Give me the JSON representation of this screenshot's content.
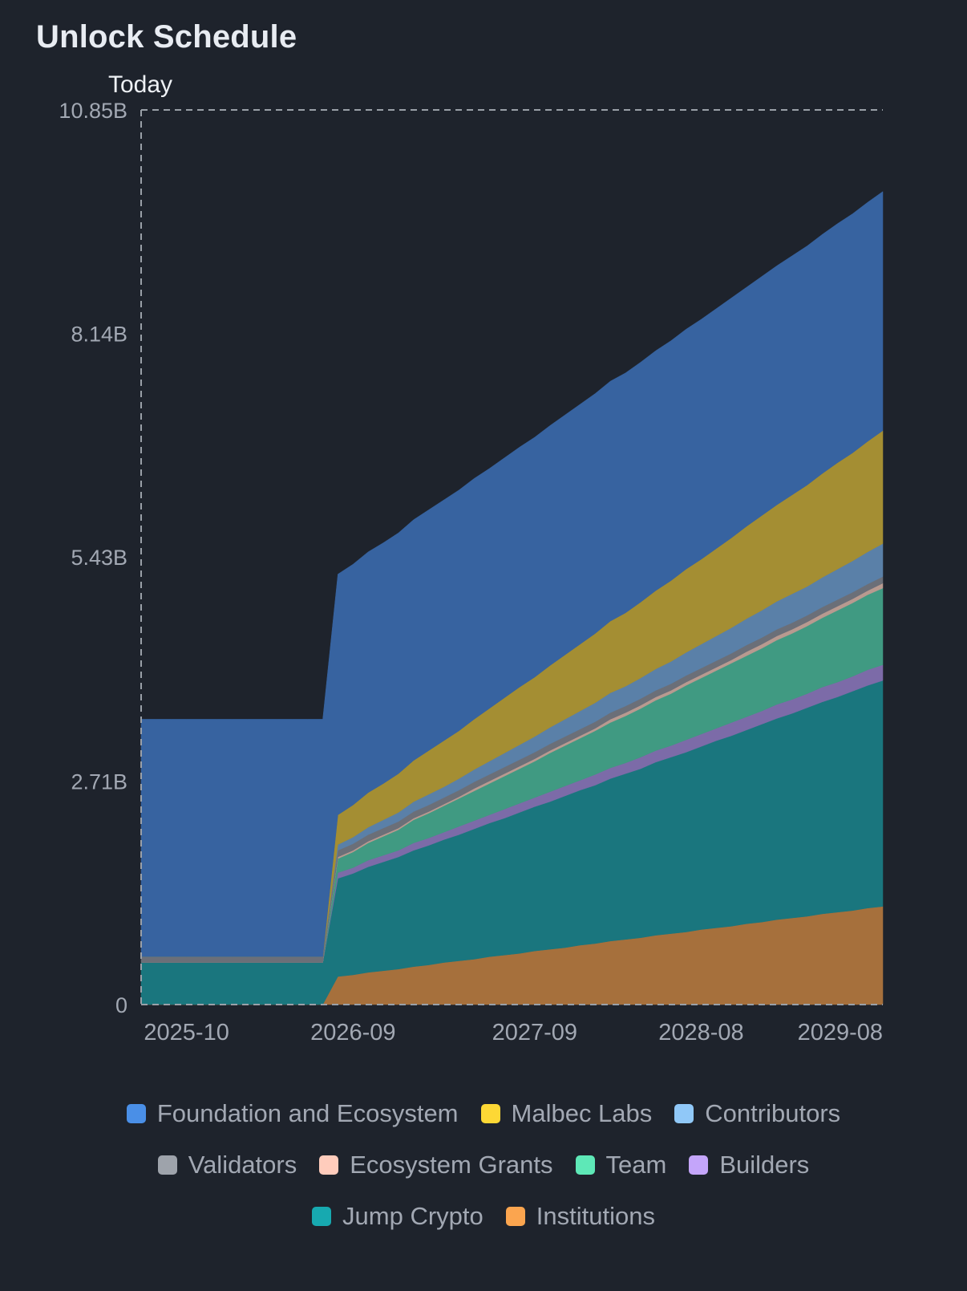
{
  "title": "Unlock Schedule",
  "today_label": "Today",
  "chart_data": {
    "type": "area",
    "stacked": true,
    "title": "Unlock Schedule",
    "xlabel": "",
    "ylabel": "",
    "ylim": [
      0,
      10.85
    ],
    "y_unit": "B",
    "y_ticks": [
      {
        "value": 0,
        "label": "0"
      },
      {
        "value": 2.71,
        "label": "2.71B"
      },
      {
        "value": 5.43,
        "label": "5.43B"
      },
      {
        "value": 8.14,
        "label": "8.14B"
      },
      {
        "value": 10.85,
        "label": "10.85B"
      }
    ],
    "x_ticks": [
      {
        "index": 3,
        "label": "2025-10"
      },
      {
        "index": 14,
        "label": "2026-09"
      },
      {
        "index": 26,
        "label": "2027-09"
      },
      {
        "index": 37,
        "label": "2028-08"
      },
      {
        "index": 49,
        "label": "2029-08"
      }
    ],
    "x_start": "2025-07",
    "x_count": 50,
    "today_index": 0,
    "grid": "top-dashed",
    "legend_position": "bottom",
    "stack_order_bottom_to_top": [
      "Institutions",
      "Jump Crypto",
      "Builders",
      "Team",
      "Ecosystem Grants",
      "Validators",
      "Contributors",
      "Malbec Labs",
      "Foundation and Ecosystem"
    ],
    "series": [
      {
        "name": "Foundation and Ecosystem",
        "legend_color": "#4a8fe7",
        "fill": "#3763a0",
        "values": [
          2.88,
          2.88,
          2.88,
          2.88,
          2.88,
          2.88,
          2.88,
          2.88,
          2.88,
          2.88,
          2.88,
          2.88,
          2.88,
          2.92,
          2.92,
          2.92,
          2.92,
          2.92,
          2.92,
          2.92,
          2.92,
          2.92,
          2.92,
          2.91,
          2.91,
          2.91,
          2.91,
          2.91,
          2.91,
          2.91,
          2.91,
          2.91,
          2.91,
          2.91,
          2.91,
          2.91,
          2.91,
          2.91,
          2.91,
          2.91,
          2.9,
          2.9,
          2.9,
          2.9,
          2.9,
          2.9,
          2.9,
          2.9,
          2.9,
          2.9
        ]
      },
      {
        "name": "Malbec Labs",
        "legend_color": "#fdd835",
        "fill": "#a48e33",
        "values": [
          0,
          0,
          0,
          0,
          0,
          0,
          0,
          0,
          0,
          0,
          0,
          0,
          0,
          0.36,
          0.39,
          0.42,
          0.44,
          0.47,
          0.5,
          0.53,
          0.56,
          0.58,
          0.61,
          0.64,
          0.67,
          0.7,
          0.72,
          0.75,
          0.78,
          0.81,
          0.84,
          0.87,
          0.89,
          0.92,
          0.95,
          0.98,
          1.01,
          1.03,
          1.06,
          1.09,
          1.12,
          1.15,
          1.17,
          1.2,
          1.23,
          1.26,
          1.29,
          1.31,
          1.34,
          1.37
        ]
      },
      {
        "name": "Contributors",
        "legend_color": "#90c8f8",
        "fill": "#5a80a8",
        "values": [
          0,
          0,
          0,
          0,
          0,
          0,
          0,
          0,
          0,
          0,
          0,
          0,
          0,
          0.07,
          0.08,
          0.09,
          0.1,
          0.11,
          0.12,
          0.13,
          0.13,
          0.14,
          0.15,
          0.16,
          0.17,
          0.18,
          0.19,
          0.2,
          0.21,
          0.22,
          0.23,
          0.24,
          0.24,
          0.25,
          0.26,
          0.27,
          0.28,
          0.29,
          0.3,
          0.31,
          0.32,
          0.33,
          0.34,
          0.35,
          0.35,
          0.36,
          0.37,
          0.38,
          0.39,
          0.4
        ]
      },
      {
        "name": "Validators",
        "legend_color": "#9ea3ab",
        "fill": "#6b6f78",
        "values": [
          0.07,
          0.07,
          0.07,
          0.07,
          0.07,
          0.07,
          0.07,
          0.07,
          0.07,
          0.07,
          0.07,
          0.07,
          0.07,
          0.08,
          0.08,
          0.08,
          0.08,
          0.08,
          0.08,
          0.08,
          0.08,
          0.08,
          0.08,
          0.08,
          0.08,
          0.08,
          0.08,
          0.08,
          0.08,
          0.08,
          0.08,
          0.08,
          0.08,
          0.08,
          0.08,
          0.08,
          0.08,
          0.08,
          0.08,
          0.08,
          0.08,
          0.08,
          0.08,
          0.08,
          0.08,
          0.08,
          0.08,
          0.08,
          0.08,
          0.08
        ]
      },
      {
        "name": "Ecosystem Grants",
        "legend_color": "#ffccbc",
        "fill": "#b89a90",
        "values": [
          0,
          0,
          0,
          0,
          0,
          0,
          0,
          0,
          0,
          0,
          0,
          0,
          0,
          0.02,
          0.02,
          0.02,
          0.02,
          0.02,
          0.02,
          0.02,
          0.02,
          0.02,
          0.03,
          0.03,
          0.03,
          0.03,
          0.03,
          0.03,
          0.03,
          0.03,
          0.03,
          0.04,
          0.04,
          0.04,
          0.04,
          0.04,
          0.04,
          0.04,
          0.04,
          0.04,
          0.05,
          0.05,
          0.05,
          0.05,
          0.05,
          0.05,
          0.05,
          0.05,
          0.05,
          0.06
        ]
      },
      {
        "name": "Team",
        "legend_color": "#5ee8b7",
        "fill": "#409a82",
        "values": [
          0,
          0,
          0,
          0,
          0,
          0,
          0,
          0,
          0,
          0,
          0,
          0,
          0,
          0.17,
          0.19,
          0.21,
          0.23,
          0.25,
          0.28,
          0.3,
          0.32,
          0.34,
          0.36,
          0.38,
          0.4,
          0.42,
          0.44,
          0.47,
          0.49,
          0.51,
          0.53,
          0.55,
          0.57,
          0.59,
          0.61,
          0.63,
          0.66,
          0.68,
          0.7,
          0.72,
          0.74,
          0.76,
          0.78,
          0.8,
          0.82,
          0.84,
          0.87,
          0.89,
          0.91,
          0.93
        ]
      },
      {
        "name": "Builders",
        "legend_color": "#c4a5fa",
        "fill": "#7c6ba8",
        "values": [
          0,
          0,
          0,
          0,
          0,
          0,
          0,
          0,
          0,
          0,
          0,
          0,
          0,
          0.07,
          0.07,
          0.08,
          0.08,
          0.08,
          0.09,
          0.09,
          0.09,
          0.1,
          0.1,
          0.1,
          0.11,
          0.11,
          0.11,
          0.12,
          0.12,
          0.12,
          0.13,
          0.13,
          0.13,
          0.14,
          0.14,
          0.14,
          0.15,
          0.15,
          0.15,
          0.16,
          0.16,
          0.16,
          0.17,
          0.17,
          0.17,
          0.18,
          0.18,
          0.18,
          0.19,
          0.19
        ]
      },
      {
        "name": "Jump Crypto",
        "legend_color": "#17a9b0",
        "fill": "#1a767e",
        "values": [
          0.51,
          0.51,
          0.51,
          0.51,
          0.51,
          0.51,
          0.51,
          0.51,
          0.51,
          0.51,
          0.51,
          0.51,
          0.51,
          1.19,
          1.23,
          1.28,
          1.32,
          1.36,
          1.41,
          1.45,
          1.49,
          1.53,
          1.58,
          1.62,
          1.66,
          1.71,
          1.75,
          1.79,
          1.84,
          1.88,
          1.92,
          1.97,
          2.01,
          2.05,
          2.1,
          2.14,
          2.18,
          2.22,
          2.27,
          2.31,
          2.35,
          2.4,
          2.44,
          2.48,
          2.53,
          2.57,
          2.61,
          2.66,
          2.7,
          2.74
        ]
      },
      {
        "name": "Institutions",
        "legend_color": "#fba54f",
        "fill": "#a6703c",
        "values": [
          0,
          0,
          0,
          0,
          0,
          0,
          0,
          0,
          0,
          0,
          0,
          0,
          0,
          0.34,
          0.36,
          0.39,
          0.41,
          0.43,
          0.46,
          0.48,
          0.51,
          0.53,
          0.55,
          0.58,
          0.6,
          0.62,
          0.65,
          0.67,
          0.69,
          0.72,
          0.74,
          0.77,
          0.79,
          0.81,
          0.84,
          0.86,
          0.88,
          0.91,
          0.93,
          0.95,
          0.98,
          1.0,
          1.03,
          1.05,
          1.07,
          1.1,
          1.12,
          1.14,
          1.17,
          1.19
        ]
      }
    ]
  }
}
